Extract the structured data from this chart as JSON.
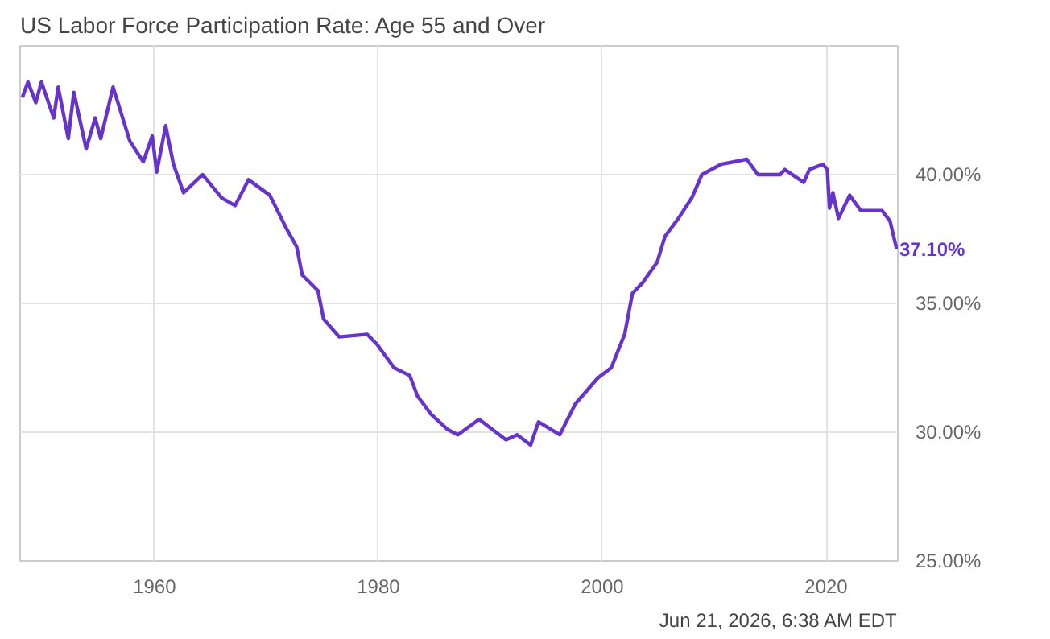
{
  "chart_data": {
    "type": "line",
    "title": "US Labor Force Participation Rate: Age 55 and Over",
    "x": [
      1948.2,
      1948.7,
      1949.4,
      1949.9,
      1951.0,
      1951.4,
      1952.3,
      1952.8,
      1953.9,
      1954.7,
      1955.2,
      1956.3,
      1957.8,
      1959.0,
      1959.8,
      1960.2,
      1961.0,
      1961.7,
      1962.6,
      1964.3,
      1966.0,
      1967.2,
      1968.4,
      1970.3,
      1971.8,
      1972.7,
      1973.2,
      1974.6,
      1975.1,
      1976.5,
      1979.0,
      1979.9,
      1981.4,
      1982.8,
      1983.5,
      1984.7,
      1986.2,
      1987.1,
      1989.0,
      1991.4,
      1992.4,
      1993.6,
      1994.3,
      1996.2,
      1997.6,
      1999.6,
      2000.8,
      2002.0,
      2002.7,
      2003.6,
      2004.9,
      2005.6,
      2006.8,
      2008.0,
      2008.9,
      2010.6,
      2011.8,
      2012.9,
      2013.9,
      2015.9,
      2016.3,
      2018.0,
      2018.5,
      2019.7,
      2020.1,
      2020.3,
      2020.6,
      2021.1,
      2022.1,
      2023.1,
      2025.0,
      2025.7,
      2026.3
    ],
    "series": [
      {
        "color": "#6633cc",
        "values": [
          43.0,
          43.6,
          42.8,
          43.6,
          42.2,
          43.4,
          41.4,
          43.2,
          41.0,
          42.2,
          41.4,
          43.4,
          41.3,
          40.5,
          41.5,
          40.1,
          41.9,
          40.4,
          39.3,
          40.0,
          39.1,
          38.8,
          39.8,
          39.2,
          37.9,
          37.2,
          36.1,
          35.5,
          34.4,
          33.7,
          33.8,
          33.4,
          32.5,
          32.2,
          31.4,
          30.7,
          30.1,
          29.9,
          30.5,
          29.7,
          29.9,
          29.5,
          30.4,
          29.9,
          31.1,
          32.1,
          32.5,
          33.8,
          35.4,
          35.8,
          36.6,
          37.6,
          38.3,
          39.1,
          40.0,
          40.4,
          40.5,
          40.6,
          40.0,
          40.0,
          40.2,
          39.7,
          40.2,
          40.4,
          40.2,
          38.7,
          39.3,
          38.3,
          39.2,
          38.6,
          38.6,
          38.2,
          37.1
        ],
        "value_labels": [
          null,
          null,
          null,
          null,
          null,
          null,
          null,
          null,
          null,
          null,
          null,
          null,
          null,
          null,
          null,
          null,
          null,
          null,
          null,
          null,
          null,
          null,
          null,
          null,
          null,
          null,
          null,
          null,
          null,
          null,
          null,
          null,
          null,
          null,
          null,
          null,
          null,
          null,
          null,
          null,
          null,
          null,
          null,
          null,
          null,
          null,
          null,
          null,
          null,
          null,
          null,
          null,
          null,
          null,
          null,
          null,
          null,
          null,
          null,
          null,
          null,
          null,
          null,
          null,
          null,
          null,
          null,
          null,
          null,
          null,
          null,
          null,
          "37.10%"
        ]
      }
    ],
    "xlim": [
      1948,
      2026.4
    ],
    "xticks": [
      1960,
      1980,
      2000,
      2020
    ],
    "ylim": [
      25,
      45
    ],
    "yticks": [
      {
        "value": 25,
        "label": "25.00%"
      },
      {
        "value": 30,
        "label": "30.00%"
      },
      {
        "value": 35,
        "label": "35.00%"
      },
      {
        "value": 40,
        "label": "40.00%"
      }
    ],
    "grid": true,
    "annotations": [
      "Jun 21, 2026, 6:38 AM EDT"
    ]
  }
}
